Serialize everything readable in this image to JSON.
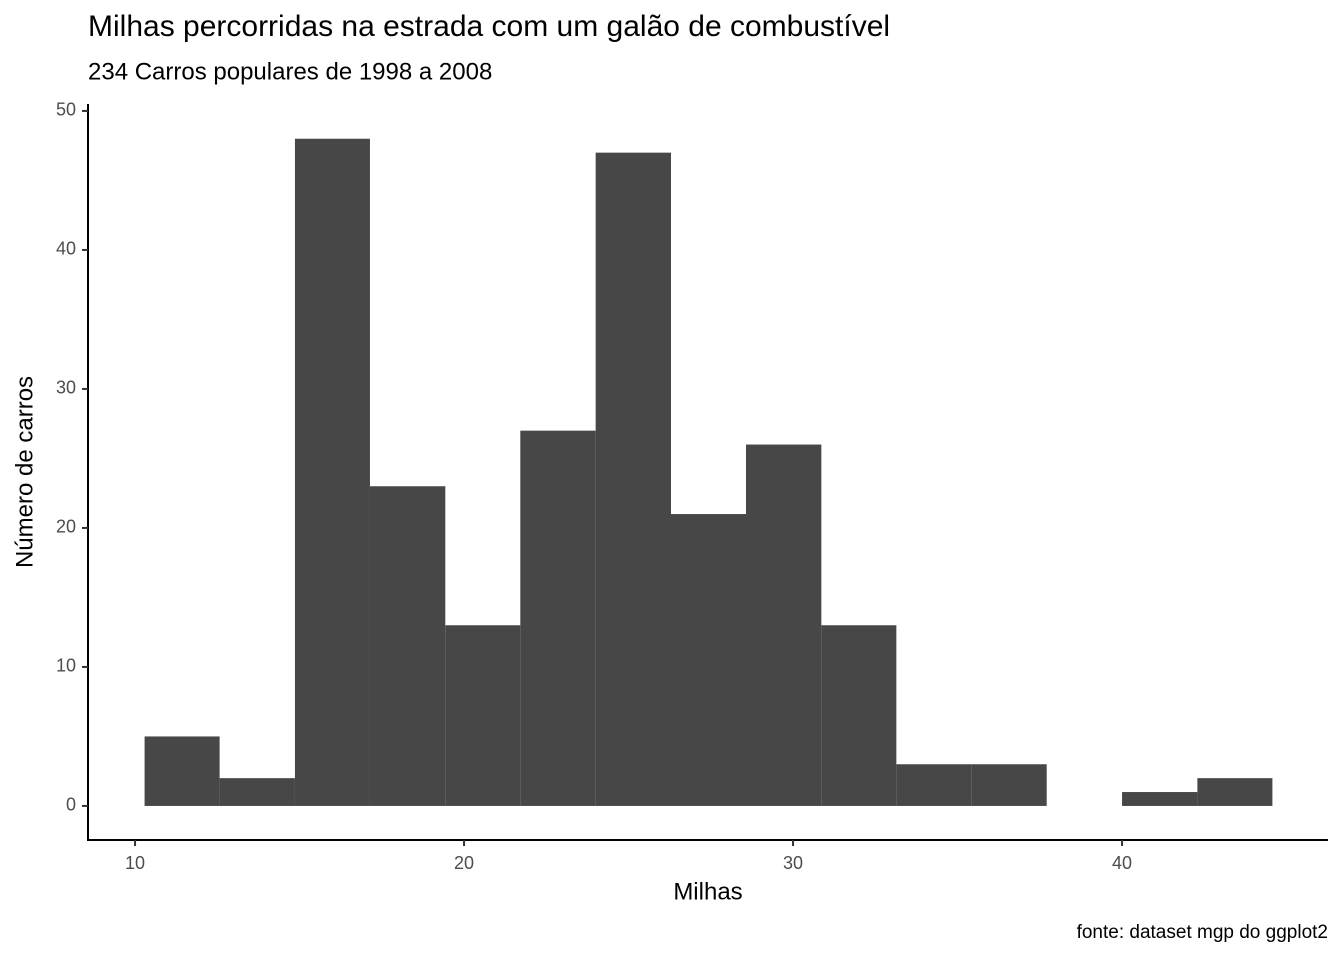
{
  "chart_data": {
    "type": "histogram",
    "title": "Milhas percorridas na estrada com um galão de combustível",
    "subtitle": "234 Carros populares de 1998 a 2008",
    "x_label": "Milhas",
    "y_label": "Número de carros",
    "caption": "fonte: dataset mgp do ggplot2",
    "bins": [
      10.29,
      12.57,
      14.86,
      17.14,
      19.43,
      21.71,
      24.0,
      26.29,
      28.57,
      30.86,
      33.14,
      35.43,
      37.71,
      40.0,
      42.29,
      44.57
    ],
    "counts": [
      5,
      2,
      48,
      23,
      13,
      27,
      47,
      21,
      26,
      13,
      3,
      3,
      0,
      1,
      2
    ],
    "color": "#474747",
    "xlim": [
      8.57,
      46.26
    ],
    "xticks": [
      10,
      20,
      30,
      40
    ],
    "ylim": [
      -2.45,
      50.5
    ],
    "yticks": [
      0,
      10,
      20,
      30,
      40,
      50
    ],
    "grid": false
  }
}
